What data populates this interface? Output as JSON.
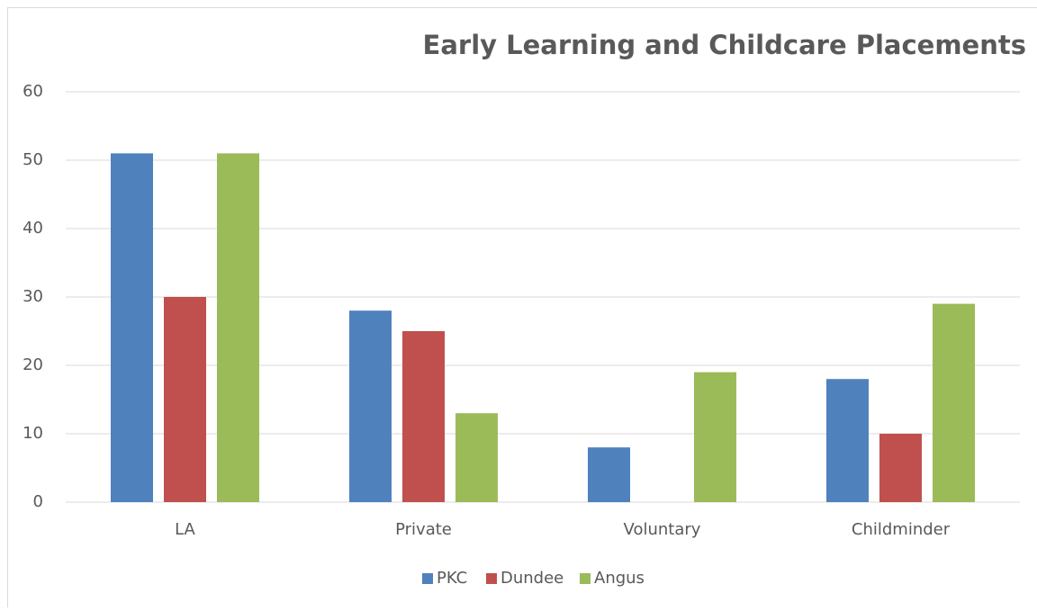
{
  "chart_data": {
    "type": "bar",
    "title": "Early Learning and Childcare Placements",
    "categories": [
      "LA",
      "Private",
      "Voluntary",
      "Childminder"
    ],
    "series": [
      {
        "name": "PKC",
        "color": "#4f81bd",
        "values": [
          51,
          28,
          8,
          18
        ]
      },
      {
        "name": "Dundee",
        "color": "#c0504d",
        "values": [
          30,
          25,
          0,
          10
        ]
      },
      {
        "name": "Angus",
        "color": "#9bbb59",
        "values": [
          51,
          13,
          19,
          29
        ]
      }
    ],
    "ylim": [
      0,
      60
    ],
    "yticks": [
      0,
      10,
      20,
      30,
      40,
      50,
      60
    ],
    "grid": true,
    "legend": "bottom"
  }
}
